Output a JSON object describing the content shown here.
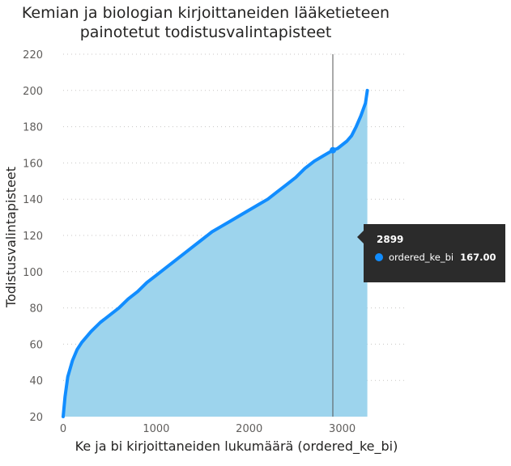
{
  "chart_data": {
    "type": "area",
    "title_lines": [
      "Kemian ja biologian kirjoittaneiden lääketieteen",
      "painotetut todistusvalintapisteet"
    ],
    "xlabel": "Ke ja bi kirjoittaneiden lukumäärä (ordered_ke_bi)",
    "ylabel": "Todistusvalintapisteet",
    "xlim": [
      0,
      3700
    ],
    "ylim": [
      20,
      220
    ],
    "x_ticks": [
      0,
      1000,
      2000,
      3000
    ],
    "y_ticks": [
      20,
      40,
      60,
      80,
      100,
      120,
      140,
      160,
      180,
      200,
      220
    ],
    "grid": true,
    "series": [
      {
        "name": "ordered_ke_bi",
        "color": "#118dff",
        "fill": "#9dd4ed",
        "x": [
          0,
          20,
          50,
          100,
          150,
          200,
          300,
          400,
          500,
          600,
          700,
          800,
          900,
          1000,
          1100,
          1200,
          1300,
          1400,
          1500,
          1600,
          1700,
          1800,
          1900,
          2000,
          2100,
          2200,
          2300,
          2400,
          2500,
          2600,
          2700,
          2800,
          2899,
          2950,
          3000,
          3050,
          3100,
          3150,
          3200,
          3250,
          3270
        ],
        "y": [
          20,
          31,
          42,
          51,
          57,
          61,
          67,
          72,
          76,
          80,
          85,
          89,
          94,
          98,
          102,
          106,
          110,
          114,
          118,
          122,
          125,
          128,
          131,
          134,
          137,
          140,
          144,
          148,
          152,
          157,
          161,
          164,
          167,
          168,
          170,
          172,
          175,
          180,
          186,
          193,
          200
        ]
      }
    ],
    "hover": {
      "x": 2899,
      "y": 167.0,
      "tooltip_title": "2899",
      "tooltip_series": "ordered_ke_bi",
      "tooltip_value": "167.00"
    }
  }
}
